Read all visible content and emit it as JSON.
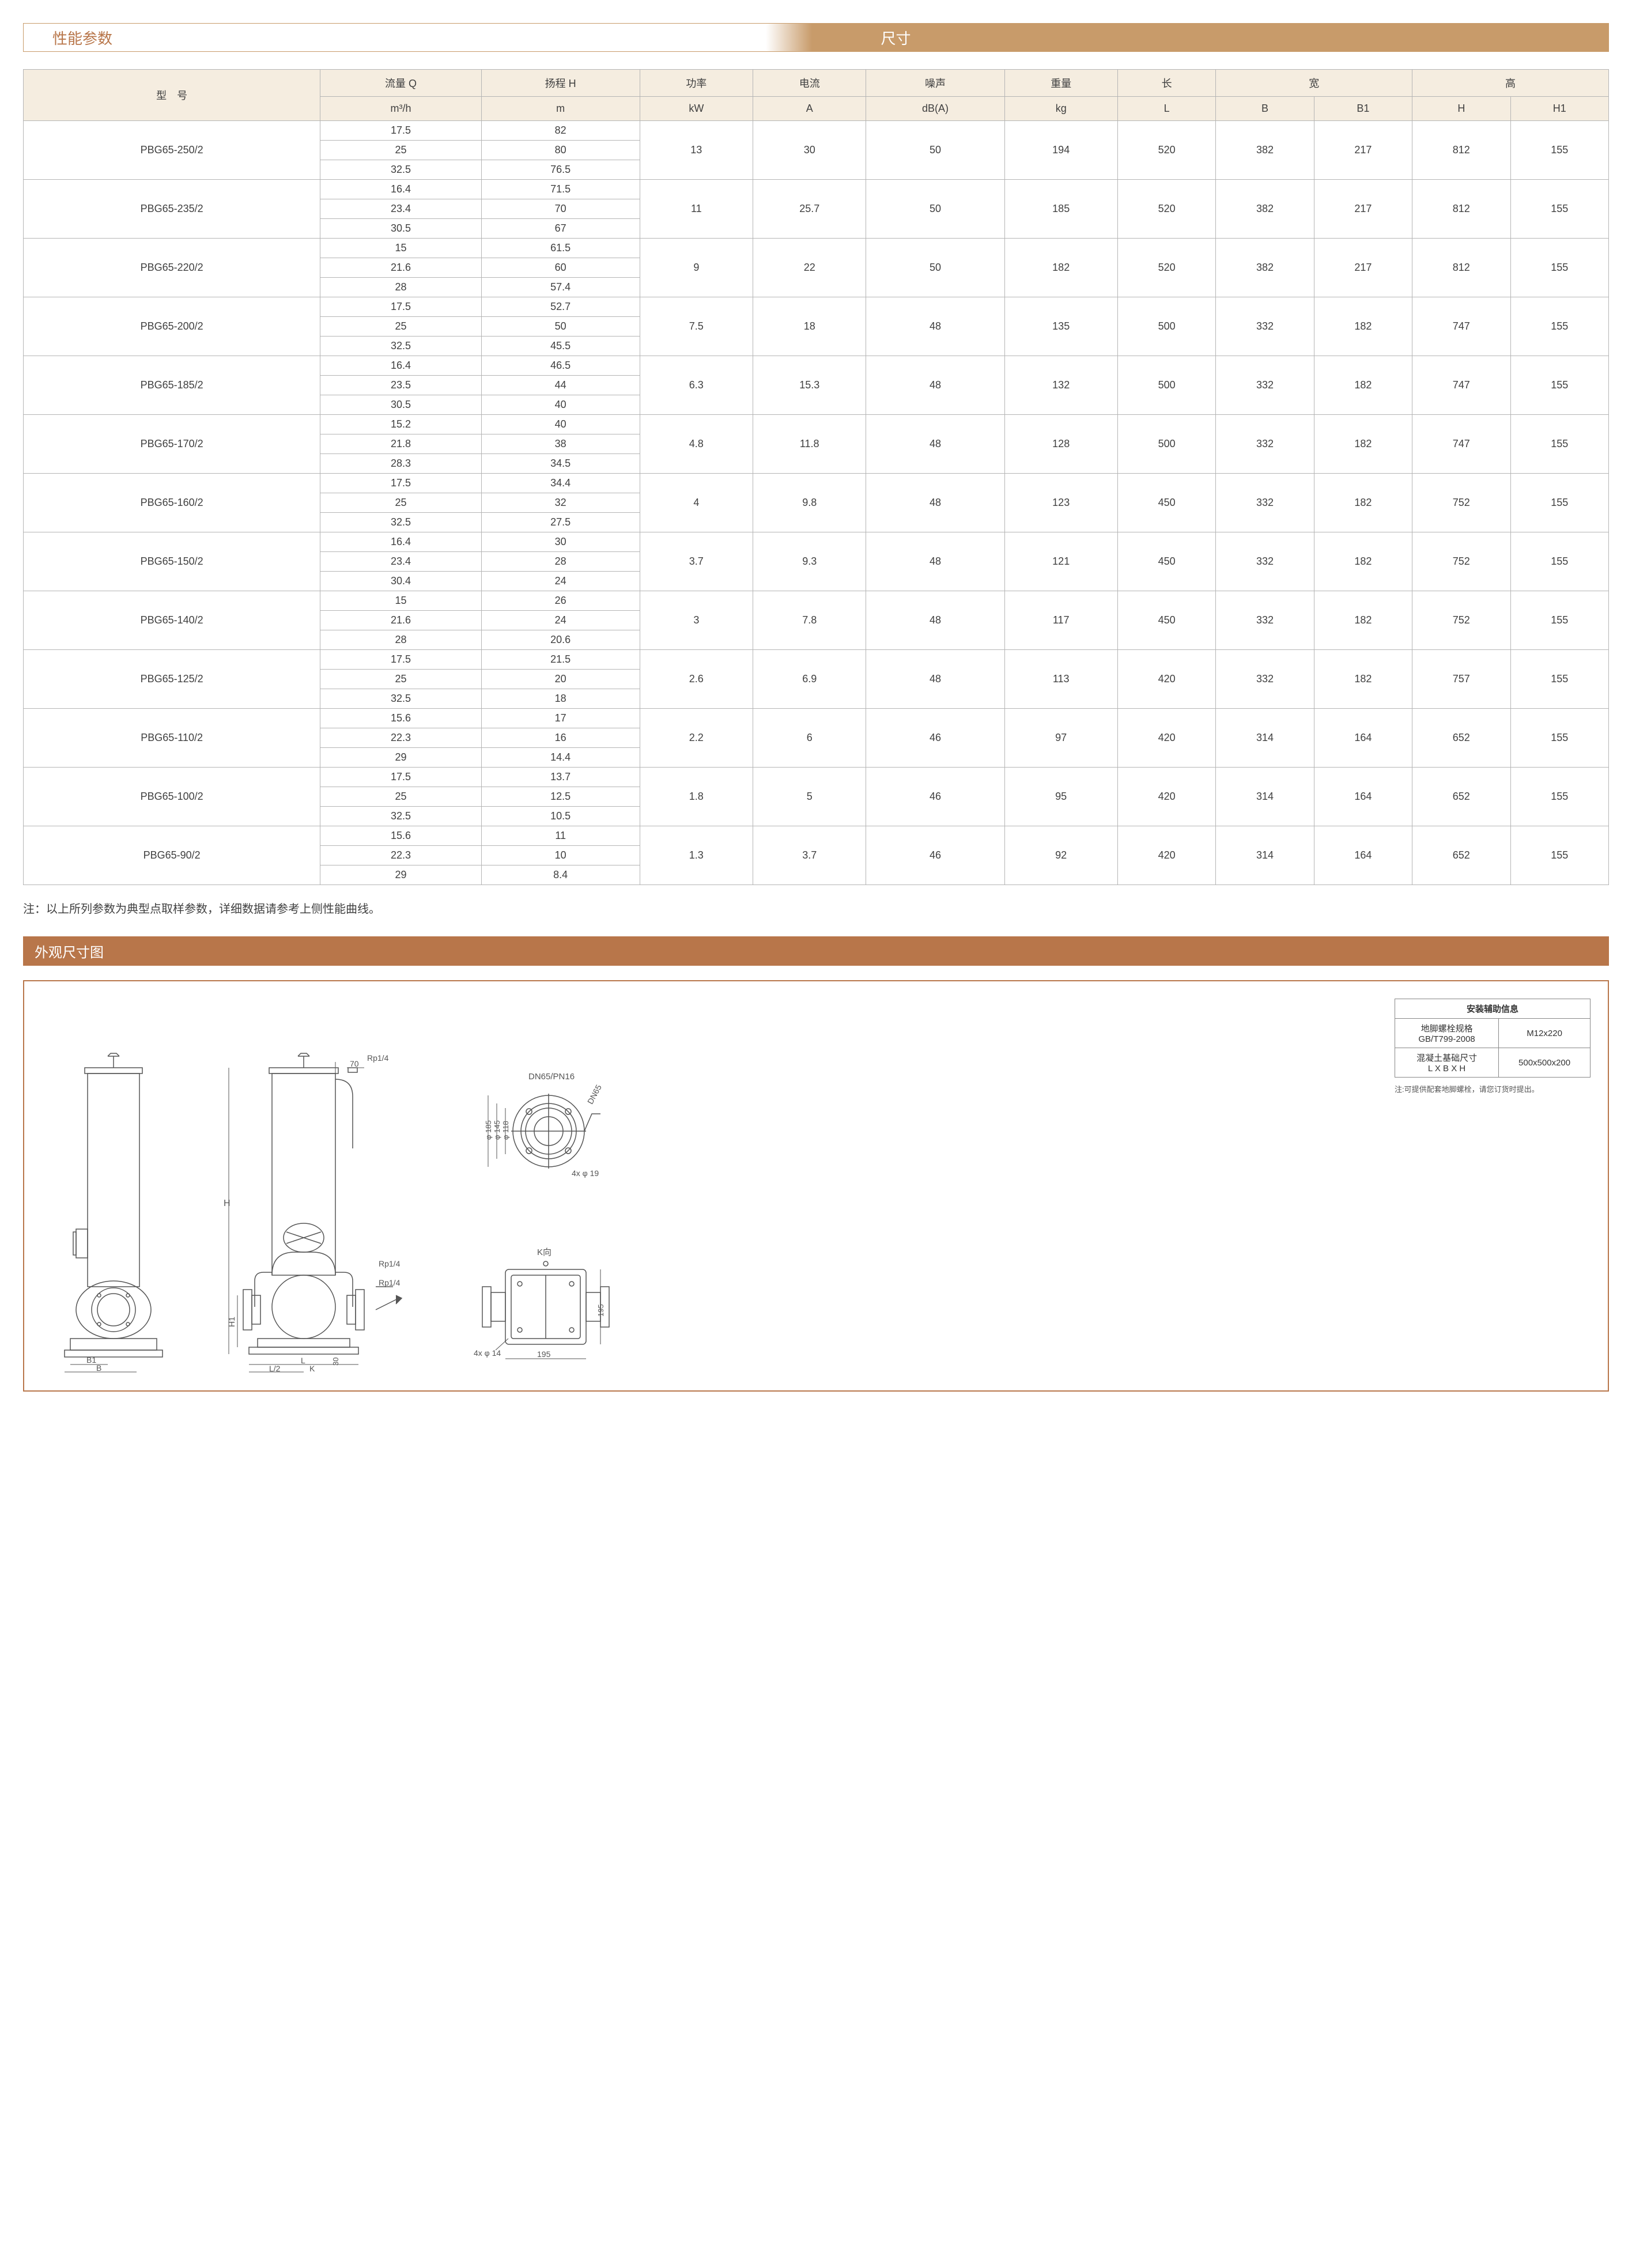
{
  "header": {
    "left": "性能参数",
    "right": "尺寸"
  },
  "table": {
    "header_row1": [
      "型　号",
      "流量 Q",
      "扬程 H",
      "功率",
      "电流",
      "噪声",
      "重量",
      "长",
      "宽",
      "高"
    ],
    "header_row2": [
      "m³/h",
      "m",
      "kW",
      "A",
      "dB(A)",
      "kg",
      "L",
      "B",
      "B1",
      "H",
      "H1"
    ],
    "groups": [
      {
        "model": "PBG65-250/2",
        "q": [
          "17.5",
          "25",
          "32.5"
        ],
        "h": [
          "82",
          "80",
          "76.5"
        ],
        "kw": "13",
        "a": "30",
        "db": "50",
        "kg": "194",
        "L": "520",
        "B": "382",
        "B1": "217",
        "H": "812",
        "H1": "155"
      },
      {
        "model": "PBG65-235/2",
        "q": [
          "16.4",
          "23.4",
          "30.5"
        ],
        "h": [
          "71.5",
          "70",
          "67"
        ],
        "kw": "11",
        "a": "25.7",
        "db": "50",
        "kg": "185",
        "L": "520",
        "B": "382",
        "B1": "217",
        "H": "812",
        "H1": "155"
      },
      {
        "model": "PBG65-220/2",
        "q": [
          "15",
          "21.6",
          "28"
        ],
        "h": [
          "61.5",
          "60",
          "57.4"
        ],
        "kw": "9",
        "a": "22",
        "db": "50",
        "kg": "182",
        "L": "520",
        "B": "382",
        "B1": "217",
        "H": "812",
        "H1": "155"
      },
      {
        "model": "PBG65-200/2",
        "q": [
          "17.5",
          "25",
          "32.5"
        ],
        "h": [
          "52.7",
          "50",
          "45.5"
        ],
        "kw": "7.5",
        "a": "18",
        "db": "48",
        "kg": "135",
        "L": "500",
        "B": "332",
        "B1": "182",
        "H": "747",
        "H1": "155"
      },
      {
        "model": "PBG65-185/2",
        "q": [
          "16.4",
          "23.5",
          "30.5"
        ],
        "h": [
          "46.5",
          "44",
          "40"
        ],
        "kw": "6.3",
        "a": "15.3",
        "db": "48",
        "kg": "132",
        "L": "500",
        "B": "332",
        "B1": "182",
        "H": "747",
        "H1": "155"
      },
      {
        "model": "PBG65-170/2",
        "q": [
          "15.2",
          "21.8",
          "28.3"
        ],
        "h": [
          "40",
          "38",
          "34.5"
        ],
        "kw": "4.8",
        "a": "11.8",
        "db": "48",
        "kg": "128",
        "L": "500",
        "B": "332",
        "B1": "182",
        "H": "747",
        "H1": "155"
      },
      {
        "model": "PBG65-160/2",
        "q": [
          "17.5",
          "25",
          "32.5"
        ],
        "h": [
          "34.4",
          "32",
          "27.5"
        ],
        "kw": "4",
        "a": "9.8",
        "db": "48",
        "kg": "123",
        "L": "450",
        "B": "332",
        "B1": "182",
        "H": "752",
        "H1": "155"
      },
      {
        "model": "PBG65-150/2",
        "q": [
          "16.4",
          "23.4",
          "30.4"
        ],
        "h": [
          "30",
          "28",
          "24"
        ],
        "kw": "3.7",
        "a": "9.3",
        "db": "48",
        "kg": "121",
        "L": "450",
        "B": "332",
        "B1": "182",
        "H": "752",
        "H1": "155"
      },
      {
        "model": "PBG65-140/2",
        "q": [
          "15",
          "21.6",
          "28"
        ],
        "h": [
          "26",
          "24",
          "20.6"
        ],
        "kw": "3",
        "a": "7.8",
        "db": "48",
        "kg": "117",
        "L": "450",
        "B": "332",
        "B1": "182",
        "H": "752",
        "H1": "155"
      },
      {
        "model": "PBG65-125/2",
        "q": [
          "17.5",
          "25",
          "32.5"
        ],
        "h": [
          "21.5",
          "20",
          "18"
        ],
        "kw": "2.6",
        "a": "6.9",
        "db": "48",
        "kg": "113",
        "L": "420",
        "B": "332",
        "B1": "182",
        "H": "757",
        "H1": "155"
      },
      {
        "model": "PBG65-110/2",
        "q": [
          "15.6",
          "22.3",
          "29"
        ],
        "h": [
          "17",
          "16",
          "14.4"
        ],
        "kw": "2.2",
        "a": "6",
        "db": "46",
        "kg": "97",
        "L": "420",
        "B": "314",
        "B1": "164",
        "H": "652",
        "H1": "155"
      },
      {
        "model": "PBG65-100/2",
        "q": [
          "17.5",
          "25",
          "32.5"
        ],
        "h": [
          "13.7",
          "12.5",
          "10.5"
        ],
        "kw": "1.8",
        "a": "5",
        "db": "46",
        "kg": "95",
        "L": "420",
        "B": "314",
        "B1": "164",
        "H": "652",
        "H1": "155"
      },
      {
        "model": "PBG65-90/2",
        "q": [
          "15.6",
          "22.3",
          "29"
        ],
        "h": [
          "11",
          "10",
          "8.4"
        ],
        "kw": "1.3",
        "a": "3.7",
        "db": "46",
        "kg": "92",
        "L": "420",
        "B": "314",
        "B1": "164",
        "H": "652",
        "H1": "155"
      }
    ]
  },
  "note": "注：以上所列参数为典型点取样参数，详细数据请参考上侧性能曲线。",
  "section2_title": "外观尺寸图",
  "diagram": {
    "labels": {
      "rp14": "Rp1/4",
      "d70": "70",
      "H": "H",
      "H1": "H1",
      "B": "B",
      "B1": "B1",
      "L": "L",
      "L2": "L/2",
      "K": "K",
      "d30": "30",
      "dn65": "DN65/PN16",
      "dn65r": "DN65",
      "d185": "φ 185",
      "d145": "φ 145",
      "d118": "φ 118",
      "holes19": "4x φ 19",
      "kview": "K向",
      "d195": "195",
      "holes14": "4x φ 14"
    }
  },
  "info_table": {
    "title": "安装辅助信息",
    "rows": [
      {
        "label1": "地脚螺栓规格",
        "label2": "GB/T799-2008",
        "value": "M12x220"
      },
      {
        "label1": "混凝土基础尺寸",
        "label2": "L X B X H",
        "value": "500x500x200"
      }
    ],
    "note": "注:可提供配套地脚螺栓，请您订货时提出。"
  },
  "colors": {
    "brown": "#b8764a",
    "tan": "#c89b6a",
    "thead_bg": "#f5ede0",
    "border": "#b5b5b5",
    "text": "#404040"
  }
}
